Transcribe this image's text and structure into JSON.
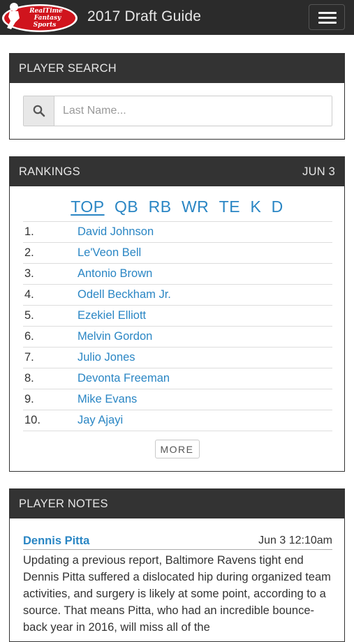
{
  "header": {
    "logo_lines": [
      "RealTime",
      "Fantasy",
      "Sports"
    ],
    "title": "2017 Draft Guide",
    "menu_icon": "hamburger-icon"
  },
  "search": {
    "heading": "PLAYER SEARCH",
    "icon": "search-icon",
    "placeholder": "Last Name..."
  },
  "rankings": {
    "heading": "RANKINGS",
    "date": "JUN 3",
    "tabs": [
      "TOP",
      "QB",
      "RB",
      "WR",
      "TE",
      "K",
      "D"
    ],
    "active_tab": "TOP",
    "rows": [
      {
        "rank": "1.",
        "name": "David Johnson"
      },
      {
        "rank": "2.",
        "name": "Le'Veon Bell"
      },
      {
        "rank": "3.",
        "name": "Antonio Brown"
      },
      {
        "rank": "4.",
        "name": "Odell Beckham Jr."
      },
      {
        "rank": "5.",
        "name": "Ezekiel Elliott"
      },
      {
        "rank": "6.",
        "name": "Melvin Gordon"
      },
      {
        "rank": "7.",
        "name": "Julio Jones"
      },
      {
        "rank": "8.",
        "name": "Devonta Freeman"
      },
      {
        "rank": "9.",
        "name": "Mike Evans"
      },
      {
        "rank": "10.",
        "name": "Jay Ajayi"
      }
    ],
    "more_label": "MORE"
  },
  "notes": {
    "heading": "PLAYER NOTES",
    "player": "Dennis Pitta",
    "time": "Jun 3 12:10am",
    "body": "Updating a previous report, Baltimore Ravens tight end Dennis Pitta suffered a dislocated hip during organized team activities, and surgery is likely at some point, according to a source. That means Pitta, who had an incredible bounce-back year in 2016, will miss all of the"
  },
  "colors": {
    "header_bg": "#2b2b2b",
    "panel_head_bg": "#333333",
    "link": "#2a86c4",
    "logo_red": "#d0141d"
  }
}
